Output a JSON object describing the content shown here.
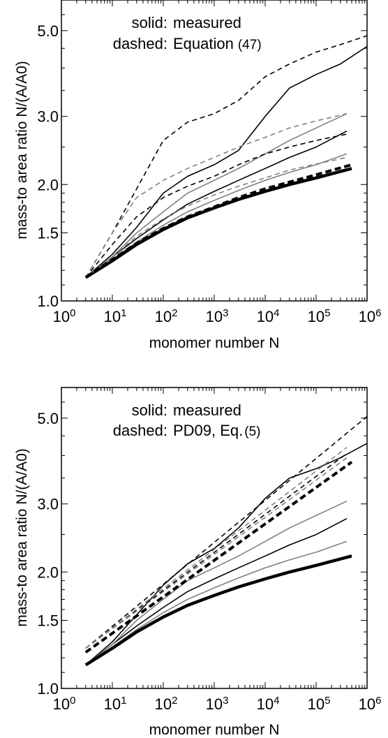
{
  "chart_data": [
    {
      "type": "line",
      "xscale": "log",
      "yscale": "log",
      "xlabel": "monomer number  N",
      "ylabel": "mass-to area ratio  N/(A/A0)",
      "xlim": [
        1,
        1000000
      ],
      "ylim": [
        1.0,
        6.0
      ],
      "x_ticks": [
        1,
        10,
        100,
        1000,
        10000,
        100000,
        1000000
      ],
      "x_tick_labels": [
        "10",
        "10",
        "10",
        "10",
        "10",
        "10",
        "10"
      ],
      "x_tick_exponents": [
        "0",
        "1",
        "2",
        "3",
        "4",
        "5",
        "6"
      ],
      "y_ticks": [
        1.0,
        1.5,
        2.0,
        3.0,
        5.0
      ],
      "y_tick_labels": [
        "1.0",
        "1.5",
        "2.0",
        "3.0",
        "5.0"
      ],
      "legend": {
        "line1_key": "solid:",
        "line1_text": "measured",
        "line2_key": "dashed:",
        "line2_text": "Equation",
        "line2_ref": "(47)"
      },
      "series": [
        {
          "style": "solid",
          "color": "#000000",
          "width": 1.6,
          "points": [
            [
              3,
              1.15
            ],
            [
              10,
              1.32
            ],
            [
              30,
              1.55
            ],
            [
              100,
              1.9
            ],
            [
              300,
              2.1
            ],
            [
              1000,
              2.25
            ],
            [
              3000,
              2.45
            ],
            [
              10000,
              3.0
            ],
            [
              30000,
              3.55
            ],
            [
              100000,
              3.85
            ],
            [
              300000,
              4.1
            ],
            [
              1000000,
              4.55
            ]
          ]
        },
        {
          "style": "solid",
          "color": "#000000",
          "width": 1.6,
          "points": [
            [
              3,
              1.15
            ],
            [
              10,
              1.3
            ],
            [
              30,
              1.45
            ],
            [
              100,
              1.62
            ],
            [
              300,
              1.78
            ],
            [
              1000,
              1.92
            ],
            [
              3000,
              2.05
            ],
            [
              10000,
              2.2
            ],
            [
              30000,
              2.35
            ],
            [
              100000,
              2.5
            ],
            [
              400000,
              2.75
            ]
          ]
        },
        {
          "style": "solid",
          "color": "#808080",
          "width": 1.6,
          "points": [
            [
              3,
              1.15
            ],
            [
              10,
              1.3
            ],
            [
              30,
              1.5
            ],
            [
              100,
              1.7
            ],
            [
              300,
              1.9
            ],
            [
              1000,
              2.05
            ],
            [
              3000,
              2.2
            ],
            [
              10000,
              2.4
            ],
            [
              30000,
              2.6
            ],
            [
              100000,
              2.8
            ],
            [
              400000,
              3.05
            ]
          ]
        },
        {
          "style": "solid",
          "color": "#808080",
          "width": 1.6,
          "points": [
            [
              3,
              1.15
            ],
            [
              10,
              1.28
            ],
            [
              30,
              1.42
            ],
            [
              100,
              1.57
            ],
            [
              300,
              1.7
            ],
            [
              1000,
              1.82
            ],
            [
              3000,
              1.93
            ],
            [
              10000,
              2.05
            ],
            [
              30000,
              2.15
            ],
            [
              100000,
              2.25
            ],
            [
              400000,
              2.4
            ]
          ]
        },
        {
          "style": "solid",
          "color": "#000000",
          "width": 4.5,
          "points": [
            [
              3,
              1.15
            ],
            [
              10,
              1.27
            ],
            [
              30,
              1.4
            ],
            [
              100,
              1.53
            ],
            [
              300,
              1.64
            ],
            [
              1000,
              1.74
            ],
            [
              3000,
              1.83
            ],
            [
              10000,
              1.92
            ],
            [
              30000,
              2.0
            ],
            [
              100000,
              2.08
            ],
            [
              500000,
              2.2
            ]
          ]
        },
        {
          "style": "dashed",
          "color": "#000000",
          "width": 1.6,
          "points": [
            [
              3,
              1.15
            ],
            [
              10,
              1.5
            ],
            [
              30,
              1.95
            ],
            [
              100,
              2.6
            ],
            [
              300,
              2.9
            ],
            [
              1000,
              3.05
            ],
            [
              3000,
              3.3
            ],
            [
              10000,
              3.8
            ],
            [
              30000,
              4.1
            ],
            [
              100000,
              4.4
            ],
            [
              300000,
              4.6
            ],
            [
              1000000,
              4.85
            ]
          ]
        },
        {
          "style": "dashed",
          "color": "#000000",
          "width": 1.6,
          "points": [
            [
              3,
              1.15
            ],
            [
              10,
              1.4
            ],
            [
              30,
              1.65
            ],
            [
              100,
              1.85
            ],
            [
              300,
              1.98
            ],
            [
              1000,
              2.1
            ],
            [
              3000,
              2.25
            ],
            [
              10000,
              2.4
            ],
            [
              30000,
              2.5
            ],
            [
              100000,
              2.6
            ],
            [
              400000,
              2.7
            ]
          ]
        },
        {
          "style": "dashed",
          "color": "#808080",
          "width": 1.6,
          "points": [
            [
              3,
              1.15
            ],
            [
              10,
              1.5
            ],
            [
              30,
              1.85
            ],
            [
              100,
              2.05
            ],
            [
              300,
              2.2
            ],
            [
              1000,
              2.35
            ],
            [
              3000,
              2.5
            ],
            [
              10000,
              2.65
            ],
            [
              30000,
              2.8
            ],
            [
              100000,
              2.92
            ],
            [
              400000,
              3.05
            ]
          ]
        },
        {
          "style": "dashed",
          "color": "#808080",
          "width": 1.6,
          "points": [
            [
              3,
              1.15
            ],
            [
              10,
              1.3
            ],
            [
              30,
              1.47
            ],
            [
              100,
              1.63
            ],
            [
              300,
              1.76
            ],
            [
              1000,
              1.88
            ],
            [
              3000,
              1.98
            ],
            [
              10000,
              2.08
            ],
            [
              30000,
              2.18
            ],
            [
              100000,
              2.26
            ],
            [
              400000,
              2.35
            ]
          ]
        },
        {
          "style": "dashed",
          "color": "#000000",
          "width": 4.0,
          "points": [
            [
              3,
              1.15
            ],
            [
              10,
              1.28
            ],
            [
              30,
              1.41
            ],
            [
              100,
              1.54
            ],
            [
              300,
              1.65
            ],
            [
              1000,
              1.75
            ],
            [
              3000,
              1.85
            ],
            [
              10000,
              1.95
            ],
            [
              30000,
              2.03
            ],
            [
              100000,
              2.12
            ],
            [
              500000,
              2.25
            ]
          ]
        }
      ]
    },
    {
      "type": "line",
      "xscale": "log",
      "yscale": "log",
      "xlabel": "monomer number  N",
      "ylabel": "mass-to area ratio  N/(A/A0)",
      "xlim": [
        1,
        1000000
      ],
      "ylim": [
        1.0,
        6.0
      ],
      "x_ticks": [
        1,
        10,
        100,
        1000,
        10000,
        100000,
        1000000
      ],
      "x_tick_labels": [
        "10",
        "10",
        "10",
        "10",
        "10",
        "10",
        "10"
      ],
      "x_tick_exponents": [
        "0",
        "1",
        "2",
        "3",
        "4",
        "5",
        "6"
      ],
      "y_ticks": [
        1.0,
        1.5,
        2.0,
        3.0,
        5.0
      ],
      "y_tick_labels": [
        "1.0",
        "1.5",
        "2.0",
        "3.0",
        "5.0"
      ],
      "legend": {
        "line1_key": "solid:",
        "line1_text": "measured",
        "line2_key": "dashed:",
        "line2_text": "PD09, Eq.",
        "line2_ref": "(5)"
      },
      "series": [
        {
          "style": "solid",
          "color": "#000000",
          "width": 1.6,
          "points": [
            [
              3,
              1.15
            ],
            [
              10,
              1.32
            ],
            [
              30,
              1.55
            ],
            [
              100,
              1.85
            ],
            [
              300,
              2.1
            ],
            [
              1000,
              2.3
            ],
            [
              3000,
              2.6
            ],
            [
              10000,
              3.1
            ],
            [
              30000,
              3.5
            ],
            [
              100000,
              3.7
            ],
            [
              300000,
              3.95
            ],
            [
              1000000,
              4.3
            ]
          ]
        },
        {
          "style": "solid",
          "color": "#000000",
          "width": 1.6,
          "points": [
            [
              3,
              1.15
            ],
            [
              10,
              1.3
            ],
            [
              30,
              1.45
            ],
            [
              100,
              1.62
            ],
            [
              300,
              1.78
            ],
            [
              1000,
              1.92
            ],
            [
              3000,
              2.05
            ],
            [
              10000,
              2.2
            ],
            [
              30000,
              2.35
            ],
            [
              100000,
              2.5
            ],
            [
              400000,
              2.75
            ]
          ]
        },
        {
          "style": "solid",
          "color": "#808080",
          "width": 1.6,
          "points": [
            [
              3,
              1.15
            ],
            [
              10,
              1.3
            ],
            [
              30,
              1.5
            ],
            [
              100,
              1.7
            ],
            [
              300,
              1.9
            ],
            [
              1000,
              2.05
            ],
            [
              3000,
              2.2
            ],
            [
              10000,
              2.4
            ],
            [
              30000,
              2.6
            ],
            [
              100000,
              2.8
            ],
            [
              400000,
              3.05
            ]
          ]
        },
        {
          "style": "solid",
          "color": "#808080",
          "width": 1.6,
          "points": [
            [
              3,
              1.15
            ],
            [
              10,
              1.28
            ],
            [
              30,
              1.42
            ],
            [
              100,
              1.57
            ],
            [
              300,
              1.7
            ],
            [
              1000,
              1.82
            ],
            [
              3000,
              1.93
            ],
            [
              10000,
              2.05
            ],
            [
              30000,
              2.15
            ],
            [
              100000,
              2.25
            ],
            [
              400000,
              2.4
            ]
          ]
        },
        {
          "style": "solid",
          "color": "#000000",
          "width": 4.5,
          "points": [
            [
              3,
              1.15
            ],
            [
              10,
              1.27
            ],
            [
              30,
              1.4
            ],
            [
              100,
              1.53
            ],
            [
              300,
              1.64
            ],
            [
              1000,
              1.74
            ],
            [
              3000,
              1.83
            ],
            [
              10000,
              1.92
            ],
            [
              30000,
              2.0
            ],
            [
              100000,
              2.08
            ],
            [
              500000,
              2.2
            ]
          ]
        },
        {
          "style": "dashed",
          "color": "#000000",
          "width": 1.6,
          "points": [
            [
              3,
              1.27
            ],
            [
              1000000,
              5.05
            ]
          ]
        },
        {
          "style": "dashed",
          "color": "#000000",
          "width": 1.6,
          "points": [
            [
              3,
              1.27
            ],
            [
              400000,
              4.05
            ]
          ]
        },
        {
          "style": "dashed",
          "color": "#808080",
          "width": 1.6,
          "points": [
            [
              3,
              1.27
            ],
            [
              400000,
              4.2
            ]
          ]
        },
        {
          "style": "dashed",
          "color": "#808080",
          "width": 1.6,
          "points": [
            [
              3,
              1.27
            ],
            [
              400000,
              3.95
            ]
          ]
        },
        {
          "style": "dashed",
          "color": "#000000",
          "width": 4.0,
          "points": [
            [
              3,
              1.24
            ],
            [
              500000,
              3.85
            ]
          ]
        }
      ]
    }
  ]
}
